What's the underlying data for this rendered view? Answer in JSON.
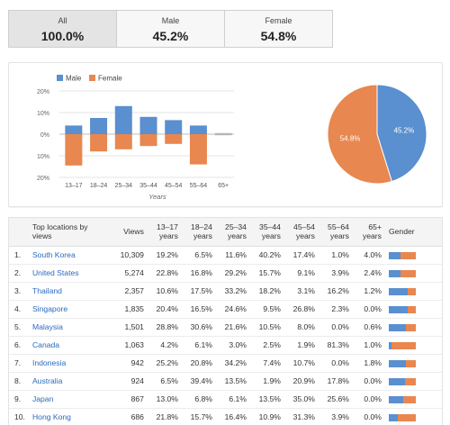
{
  "tabs": [
    {
      "label": "All",
      "value": "100.0%",
      "active": true
    },
    {
      "label": "Male",
      "value": "45.2%",
      "active": false
    },
    {
      "label": "Female",
      "value": "54.8%",
      "active": false
    }
  ],
  "colors": {
    "male": "#5a8fd0",
    "female": "#e8874f"
  },
  "chart_data": [
    {
      "type": "bar",
      "legend": [
        "Male",
        "Female"
      ],
      "legend_position": "top-left",
      "categories": [
        "13–17",
        "18–24",
        "25–34",
        "35–44",
        "45–54",
        "55–64",
        "65+"
      ],
      "series": [
        {
          "name": "Male",
          "values": [
            4,
            7.5,
            13,
            8,
            6.5,
            4,
            0.5
          ]
        },
        {
          "name": "Female",
          "values": [
            14.5,
            8,
            7,
            5.5,
            4.5,
            14,
            0.5
          ]
        }
      ],
      "ytick_labels": [
        "20%",
        "10%",
        "0%",
        "10%",
        "20%"
      ],
      "ylim": [
        -20,
        20
      ],
      "xlabel": "Years",
      "ylabel": "",
      "grid": true
    },
    {
      "type": "pie",
      "slices": [
        {
          "label": "45.2%",
          "value": 45.2,
          "name": "Male"
        },
        {
          "label": "54.8%",
          "value": 54.8,
          "name": "Female"
        }
      ]
    }
  ],
  "table": {
    "headers": [
      "",
      "Top locations by views",
      "Views",
      "13–17 years",
      "18–24 years",
      "25–34 years",
      "35–44 years",
      "45–54 years",
      "55–64 years",
      "65+ years",
      "Gender"
    ],
    "rows": [
      {
        "idx": "1.",
        "loc": "South Korea",
        "views": "10,309",
        "a": "19.2%",
        "b": "6.5%",
        "c": "11.6%",
        "d": "40.2%",
        "e": "17.4%",
        "f": "1.0%",
        "g": "4.0%",
        "male": 0.45
      },
      {
        "idx": "2.",
        "loc": "United States",
        "views": "5,274",
        "a": "22.8%",
        "b": "16.8%",
        "c": "29.2%",
        "d": "15.7%",
        "e": "9.1%",
        "f": "3.9%",
        "g": "2.4%",
        "male": 0.45
      },
      {
        "idx": "3.",
        "loc": "Thailand",
        "views": "2,357",
        "a": "10.6%",
        "b": "17.5%",
        "c": "33.2%",
        "d": "18.2%",
        "e": "3.1%",
        "f": "16.2%",
        "g": "1.2%",
        "male": 0.7
      },
      {
        "idx": "4.",
        "loc": "Singapore",
        "views": "1,835",
        "a": "20.4%",
        "b": "16.5%",
        "c": "24.6%",
        "d": "9.5%",
        "e": "26.8%",
        "f": "2.3%",
        "g": "0.0%",
        "male": 0.7
      },
      {
        "idx": "5.",
        "loc": "Malaysia",
        "views": "1,501",
        "a": "28.8%",
        "b": "30.6%",
        "c": "21.6%",
        "d": "10.5%",
        "e": "8.0%",
        "f": "0.0%",
        "g": "0.6%",
        "male": 0.65
      },
      {
        "idx": "6.",
        "loc": "Canada",
        "views": "1,063",
        "a": "4.2%",
        "b": "6.1%",
        "c": "3.0%",
        "d": "2.5%",
        "e": "1.9%",
        "f": "81.3%",
        "g": "1.0%",
        "male": 0.1
      },
      {
        "idx": "7.",
        "loc": "Indonesia",
        "views": "942",
        "a": "25.2%",
        "b": "20.8%",
        "c": "34.2%",
        "d": "7.4%",
        "e": "10.7%",
        "f": "0.0%",
        "g": "1.8%",
        "male": 0.65
      },
      {
        "idx": "8.",
        "loc": "Australia",
        "views": "924",
        "a": "6.5%",
        "b": "39.4%",
        "c": "13.5%",
        "d": "1.9%",
        "e": "20.9%",
        "f": "17.8%",
        "g": "0.0%",
        "male": 0.6
      },
      {
        "idx": "9.",
        "loc": "Japan",
        "views": "867",
        "a": "13.0%",
        "b": "6.8%",
        "c": "6.1%",
        "d": "13.5%",
        "e": "35.0%",
        "f": "25.6%",
        "g": "0.0%",
        "male": 0.55
      },
      {
        "idx": "10.",
        "loc": "Hong Kong",
        "views": "686",
        "a": "21.8%",
        "b": "15.7%",
        "c": "16.4%",
        "d": "10.9%",
        "e": "31.3%",
        "f": "3.9%",
        "g": "0.0%",
        "male": 0.35
      }
    ]
  }
}
